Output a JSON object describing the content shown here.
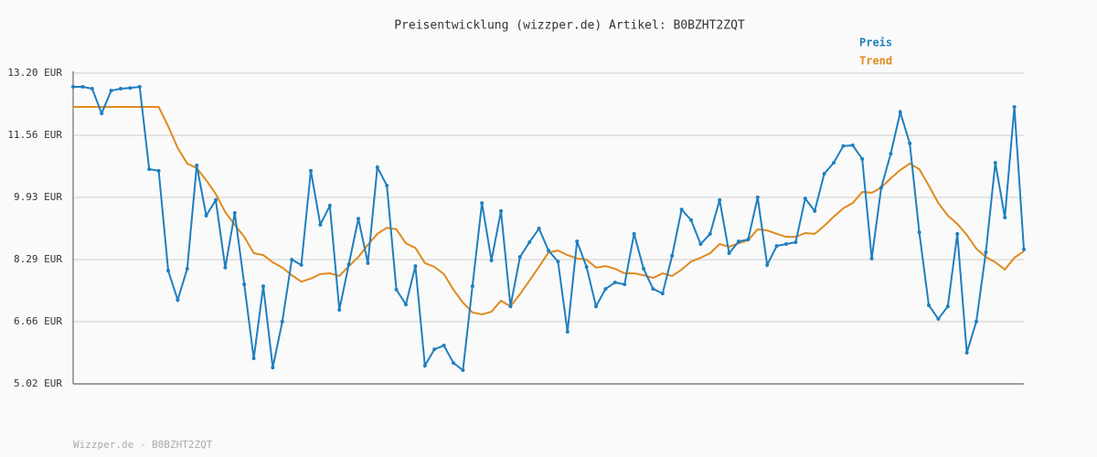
{
  "chart_data": {
    "type": "line",
    "title": "Preisentwicklung (wizzper.de) Artikel: B0BZHT2ZQT",
    "footer": "Wizzper.de - B0BZHT2ZQT",
    "categories": [
      null,
      null,
      null,
      null,
      null,
      null,
      null,
      null,
      null,
      null,
      null,
      null,
      null,
      null,
      null,
      null,
      null,
      null,
      null,
      null,
      null,
      null,
      null,
      null,
      null,
      null,
      null,
      null,
      null,
      null,
      null,
      null,
      null,
      null,
      null,
      null,
      null,
      null,
      null,
      null,
      null,
      null,
      null,
      null,
      null,
      null,
      null,
      null,
      null,
      null,
      null,
      null,
      null,
      null,
      null,
      null,
      null,
      null,
      null,
      null,
      null,
      null,
      null,
      null,
      null,
      null,
      null,
      null,
      null,
      null,
      null,
      null,
      null,
      null,
      null,
      null,
      null,
      null,
      null,
      null,
      null,
      null,
      null,
      null,
      null,
      null,
      null,
      null,
      null,
      null,
      null,
      null,
      null,
      null,
      null,
      null,
      null,
      null,
      null,
      null,
      null
    ],
    "ylim": [
      5.02,
      13.2
    ],
    "yticks": [
      {
        "value": 5.02,
        "label": "5.02 EUR"
      },
      {
        "value": 6.66,
        "label": "6.66 EUR"
      },
      {
        "value": 8.29,
        "label": "8.29 EUR"
      },
      {
        "value": 9.93,
        "label": "9.93 EUR"
      },
      {
        "value": 11.56,
        "label": "11.56 EUR"
      },
      {
        "value": 13.2,
        "label": "13.20 EUR"
      }
    ],
    "grid": true,
    "legend": "top-right",
    "series": [
      {
        "name": "Preis",
        "color": "#1f7fbf",
        "markers": true,
        "values": [
          12.84,
          12.84,
          12.79,
          12.14,
          12.74,
          12.79,
          12.81,
          12.84,
          10.67,
          10.63,
          8.0,
          7.23,
          8.05,
          10.77,
          9.45,
          9.86,
          8.08,
          9.52,
          7.64,
          5.69,
          7.59,
          5.45,
          6.66,
          8.29,
          8.15,
          10.63,
          9.21,
          9.71,
          6.97,
          8.17,
          9.37,
          8.2,
          10.72,
          10.24,
          7.5,
          7.11,
          8.12,
          5.5,
          5.93,
          6.03,
          5.57,
          5.38,
          7.59,
          9.78,
          8.27,
          9.57,
          7.06,
          8.36,
          8.75,
          9.11,
          8.53,
          8.24,
          6.39,
          8.77,
          8.1,
          7.06,
          7.52,
          7.69,
          7.64,
          8.97,
          8.05,
          7.52,
          7.4,
          8.39,
          9.61,
          9.33,
          8.7,
          8.97,
          9.86,
          8.46,
          8.77,
          8.82,
          9.93,
          8.15,
          8.65,
          8.7,
          8.75,
          9.9,
          9.57,
          10.55,
          10.84,
          11.28,
          11.3,
          10.94,
          8.32,
          10.19,
          11.08,
          12.17,
          11.35,
          9.01,
          7.09,
          6.73,
          7.06,
          8.97,
          5.84,
          6.66,
          8.48,
          10.84,
          9.4,
          12.31,
          8.56
        ]
      },
      {
        "name": "Trend",
        "color": "#e08a1e",
        "markers": false,
        "values": [
          12.31,
          12.31,
          12.31,
          12.31,
          12.31,
          12.31,
          12.31,
          12.31,
          12.31,
          12.31,
          11.8,
          11.23,
          10.82,
          10.7,
          10.38,
          10.02,
          9.54,
          9.21,
          8.89,
          8.46,
          8.41,
          8.22,
          8.08,
          7.88,
          7.71,
          7.79,
          7.91,
          7.93,
          7.86,
          8.12,
          8.36,
          8.68,
          8.97,
          9.13,
          9.09,
          8.72,
          8.6,
          8.2,
          8.1,
          7.91,
          7.5,
          7.16,
          6.9,
          6.85,
          6.92,
          7.21,
          7.06,
          7.38,
          7.74,
          8.1,
          8.48,
          8.53,
          8.41,
          8.32,
          8.29,
          8.08,
          8.12,
          8.05,
          7.93,
          7.93,
          7.88,
          7.81,
          7.93,
          7.86,
          8.03,
          8.24,
          8.34,
          8.46,
          8.7,
          8.63,
          8.72,
          8.8,
          9.09,
          9.06,
          8.97,
          8.89,
          8.89,
          8.99,
          8.97,
          9.18,
          9.42,
          9.64,
          9.78,
          10.07,
          10.05,
          10.19,
          10.43,
          10.65,
          10.82,
          10.67,
          10.24,
          9.78,
          9.45,
          9.23,
          8.94,
          8.58,
          8.36,
          8.22,
          8.03,
          8.34,
          8.51
        ]
      }
    ]
  }
}
